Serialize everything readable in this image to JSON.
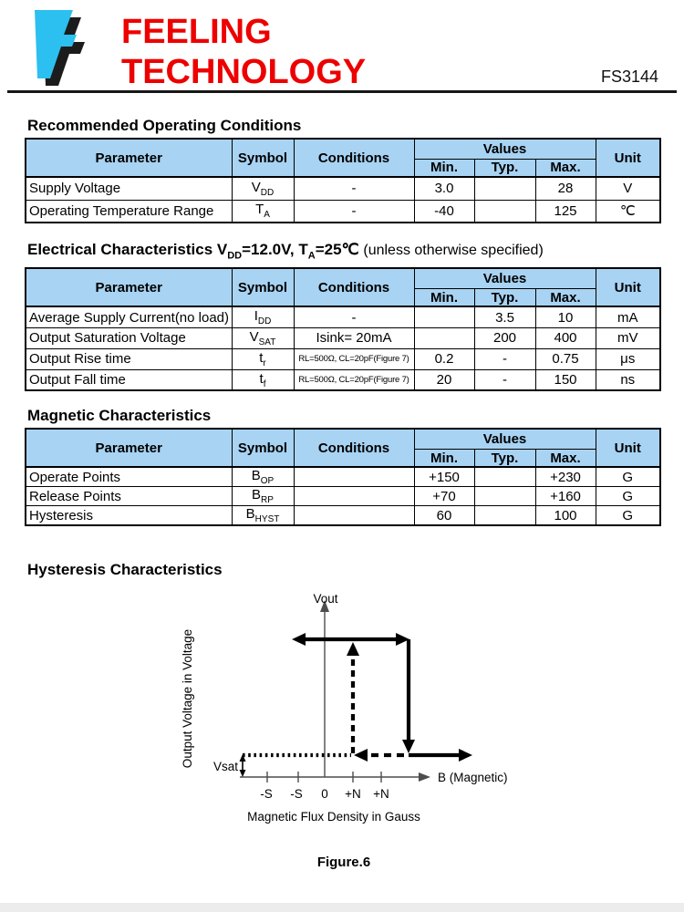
{
  "header": {
    "brand_line1": "FEELING",
    "brand_line2": "TECHNOLOGY",
    "part_number": "FS3144",
    "brand_color": "#ED0000",
    "logo_color": "#2BC0F0"
  },
  "table_headers": {
    "parameter": "Parameter",
    "symbol": "Symbol",
    "conditions": "Conditions",
    "values": "Values",
    "min": "Min.",
    "typ": "Typ.",
    "max": "Max.",
    "unit": "Unit"
  },
  "tables": [
    {
      "title": "Recommended Operating Conditions",
      "rows": [
        {
          "parameter": "Supply Voltage",
          "symbol_base": "V",
          "symbol_sub": "DD",
          "conditions": "-",
          "cond_small": false,
          "min": "3.0",
          "typ": "",
          "max": "28",
          "unit": "V"
        },
        {
          "parameter": "Operating Temperature Range",
          "symbol_base": "T",
          "symbol_sub": "A",
          "conditions": "-",
          "cond_small": false,
          "min": "-40",
          "typ": "",
          "max": "125",
          "unit": "℃"
        }
      ]
    },
    {
      "title_segments": [
        {
          "t": "Electrical Characteristics V"
        },
        {
          "sub": "DD"
        },
        {
          "t": "=12.0V, T"
        },
        {
          "sub": "A"
        },
        {
          "t": "=25℃ "
        },
        {
          "light": "(unless otherwise specified)"
        }
      ],
      "rows": [
        {
          "parameter": "Average Supply Current(no load)",
          "symbol_base": "I",
          "symbol_sub": "DD",
          "conditions": "-",
          "cond_small": false,
          "min": "",
          "typ": "3.5",
          "max": "10",
          "unit": "mA"
        },
        {
          "parameter": "Output Saturation Voltage",
          "symbol_base": "V",
          "symbol_sub": "SAT",
          "conditions": "Isink= 20mA",
          "cond_small": false,
          "min": "",
          "typ": "200",
          "max": "400",
          "unit": "mV"
        },
        {
          "parameter": "Output Rise time",
          "symbol_base": "t",
          "symbol_sub": "r",
          "conditions": "RL=500Ω, CL=20pF(Figure 7)",
          "cond_small": true,
          "min": "0.2",
          "typ": "-",
          "max": "0.75",
          "unit": "μs"
        },
        {
          "parameter": "Output Fall time",
          "symbol_base": "t",
          "symbol_sub": "f",
          "conditions": "RL=500Ω, CL=20pF(Figure 7)",
          "cond_small": true,
          "min": "20",
          "typ": "-",
          "max": "150",
          "unit": "ns"
        }
      ]
    },
    {
      "title": "Magnetic Characteristics",
      "rows": [
        {
          "parameter": "Operate Points",
          "symbol_base": "B",
          "symbol_sub": "OP",
          "conditions": "",
          "cond_small": false,
          "min": "+150",
          "typ": "",
          "max": "+230",
          "unit": "G"
        },
        {
          "parameter": "Release Points",
          "symbol_base": "B",
          "symbol_sub": "RP",
          "conditions": "",
          "cond_small": false,
          "min": "+70",
          "typ": "",
          "max": "+160",
          "unit": "G"
        },
        {
          "parameter": "Hysteresis",
          "symbol_base": "B",
          "symbol_sub": "HYST",
          "conditions": "",
          "cond_small": false,
          "min": "60",
          "typ": "",
          "max": "100",
          "unit": "G"
        }
      ]
    }
  ],
  "figure": {
    "section_title": "Hysteresis Characteristics",
    "y_axis_top_label": "Vout",
    "y_axis_side_label": "Output Voltage in Voltage",
    "x_axis_label": "B (Magnetic)",
    "vsat_label": "Vsat",
    "x_tick_labels": [
      "-S",
      "-S",
      "0",
      "+N",
      "+N"
    ],
    "x_caption": "Magnetic Flux Density in Gauss",
    "caption": "Figure.6"
  }
}
